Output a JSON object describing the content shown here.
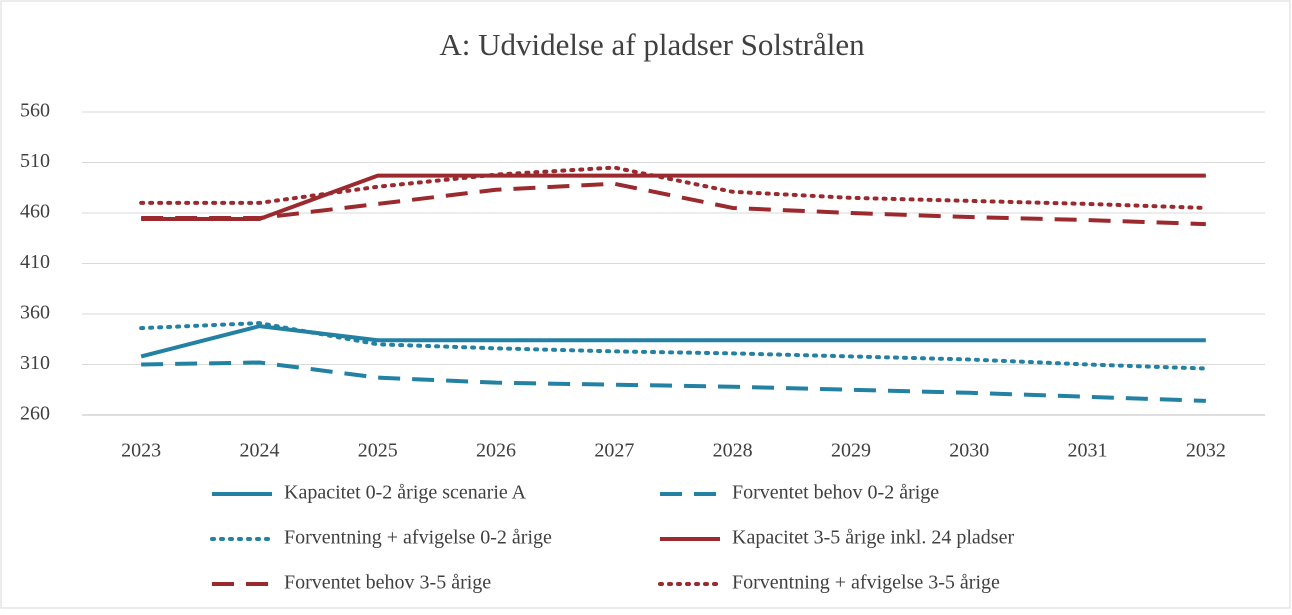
{
  "chart_data": {
    "type": "line",
    "title": "A: Udvidelse af pladser Solstrålen",
    "categories": [
      "2023",
      "2024",
      "2025",
      "2026",
      "2027",
      "2028",
      "2029",
      "2030",
      "2031",
      "2032"
    ],
    "series": [
      {
        "name": "Kapacitet 0-2 årige scenarie A",
        "color": "#2381a3",
        "dash": "solid",
        "values": [
          318,
          348,
          334,
          334,
          334,
          334,
          334,
          334,
          334,
          334
        ]
      },
      {
        "name": "Forventet behov 0-2 årige",
        "color": "#2381a3",
        "dash": "dashed",
        "values": [
          310,
          312,
          297,
          292,
          290,
          288,
          285,
          282,
          278,
          274
        ]
      },
      {
        "name": "Forventning + afvigelse 0-2 årige",
        "color": "#2381a3",
        "dash": "dotted",
        "values": [
          346,
          351,
          330,
          326,
          323,
          321,
          318,
          315,
          310,
          306
        ]
      },
      {
        "name": "Kapacitet 3-5 årige inkl. 24 pladser",
        "color": "#9b2a2f",
        "dash": "solid",
        "values": [
          454,
          454,
          497,
          497,
          497,
          497,
          497,
          497,
          497,
          497
        ]
      },
      {
        "name": "Forventet behov 3-5 årige",
        "color": "#9b2a2f",
        "dash": "dashed",
        "values": [
          455,
          455,
          469,
          483,
          489,
          465,
          460,
          456,
          453,
          449
        ]
      },
      {
        "name": "Forventning + afvigelse 3-5 årige",
        "color": "#9b2a2f",
        "dash": "dotted",
        "values": [
          470,
          470,
          486,
          498,
          505,
          481,
          475,
          472,
          469,
          465
        ]
      }
    ],
    "ylim": [
      260,
      560
    ],
    "yticks": [
      260,
      310,
      360,
      410,
      460,
      510,
      560
    ],
    "grid": true,
    "legend": "bottom"
  }
}
